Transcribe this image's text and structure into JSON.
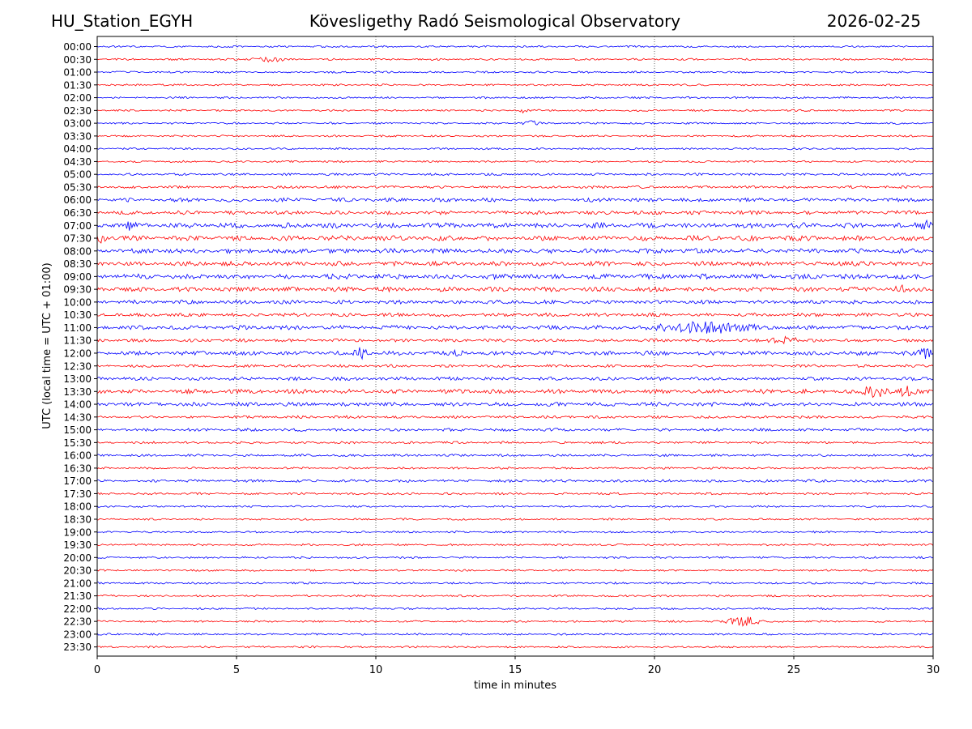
{
  "header": {
    "station": "HU_Station_EGYH",
    "title": "Kövesligethy Radó Seismological Observatory",
    "date": "2026-02-25"
  },
  "chart_data": {
    "type": "line",
    "title": "Kövesligethy Radó Seismological Observatory",
    "xlabel": "time in minutes",
    "ylabel": "UTC (local time = UTC + 01:00)",
    "xlim": [
      0,
      30
    ],
    "x_ticks": [
      0,
      5,
      10,
      15,
      20,
      25,
      30
    ],
    "x_tick_labels": [
      "0",
      "5",
      "10",
      "15",
      "20",
      "25",
      "30"
    ],
    "grid": "vertical dotted at x ticks",
    "colors": {
      "even_rows": "#0000ff",
      "odd_rows": "#ff0000"
    },
    "row_labels": [
      "00:00",
      "00:30",
      "01:00",
      "01:30",
      "02:00",
      "02:30",
      "03:00",
      "03:30",
      "04:00",
      "04:30",
      "05:00",
      "05:30",
      "06:00",
      "06:30",
      "07:00",
      "07:30",
      "08:00",
      "08:30",
      "09:00",
      "09:30",
      "10:00",
      "10:30",
      "11:00",
      "11:30",
      "12:00",
      "12:30",
      "13:00",
      "13:30",
      "14:00",
      "14:30",
      "15:00",
      "15:30",
      "16:00",
      "16:30",
      "17:00",
      "17:30",
      "18:00",
      "18:30",
      "19:00",
      "19:30",
      "20:00",
      "20:30",
      "21:00",
      "21:30",
      "22:00",
      "22:30",
      "23:00",
      "23:30"
    ],
    "noise_level": [
      1,
      1,
      1,
      1,
      1,
      1,
      1,
      1,
      1,
      1,
      1.2,
      1.4,
      2,
      2,
      2.6,
      2.6,
      2.4,
      2.4,
      2.6,
      2.4,
      2,
      1.8,
      2.2,
      1.6,
      2.2,
      1.4,
      1.8,
      2.2,
      2,
      1.4,
      1.5,
      1.2,
      1.2,
      1.1,
      1.4,
      1.1,
      1,
      1,
      1,
      1,
      1,
      1,
      1,
      1,
      1,
      1,
      1,
      1
    ],
    "events": [
      {
        "row": "00:30",
        "minute": 6.1,
        "amp": 3,
        "dur": 1.2
      },
      {
        "row": "02:30",
        "minute": 15.3,
        "amp": 2.5,
        "dur": 0.3
      },
      {
        "row": "03:00",
        "minute": 15.6,
        "amp": 3,
        "dur": 0.6
      },
      {
        "row": "07:00",
        "minute": 1.2,
        "amp": 5,
        "dur": 0.3
      },
      {
        "row": "07:00",
        "minute": 29.8,
        "amp": 6,
        "dur": 0.8
      },
      {
        "row": "07:30",
        "minute": 0.1,
        "amp": 6,
        "dur": 0.4
      },
      {
        "row": "09:30",
        "minute": 28.8,
        "amp": 4,
        "dur": 0.3
      },
      {
        "row": "11:00",
        "minute": 21.8,
        "amp": 7,
        "dur": 3.0
      },
      {
        "row": "11:30",
        "minute": 24.7,
        "amp": 4,
        "dur": 1.0
      },
      {
        "row": "12:00",
        "minute": 9.5,
        "amp": 9,
        "dur": 0.5
      },
      {
        "row": "12:00",
        "minute": 12.9,
        "amp": 3,
        "dur": 0.4
      },
      {
        "row": "12:00",
        "minute": 29.7,
        "amp": 5,
        "dur": 0.6
      },
      {
        "row": "13:30",
        "minute": 27.9,
        "amp": 8,
        "dur": 1.0
      },
      {
        "row": "13:30",
        "minute": 29.0,
        "amp": 6,
        "dur": 0.6
      },
      {
        "row": "22:30",
        "minute": 23.2,
        "amp": 8,
        "dur": 1.0
      }
    ]
  }
}
